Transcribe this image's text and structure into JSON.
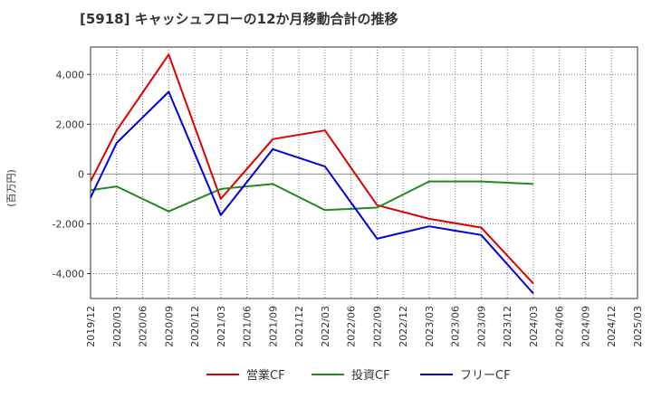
{
  "title": "[5918]  キャッシュフローの12か月移動合計の推移",
  "chart_data": {
    "type": "line",
    "title": "[5918]  キャッシュフローの12か月移動合計の推移",
    "xlabel": "",
    "ylabel": "(百万円)",
    "categories": [
      "2019/12",
      "2020/03",
      "2020/06",
      "2020/09",
      "2020/12",
      "2021/03",
      "2021/06",
      "2021/09",
      "2021/12",
      "2022/03",
      "2022/06",
      "2022/09",
      "2022/12",
      "2023/03",
      "2023/06",
      "2023/09",
      "2023/12",
      "2024/03",
      "2024/06",
      "2024/09",
      "2024/12",
      "2025/03"
    ],
    "yticks": [
      4000,
      2000,
      0,
      -2000,
      -4000
    ],
    "ytick_labels": [
      "4,000",
      "2,000",
      "0",
      "-2,000",
      "-4,000"
    ],
    "ylim": [
      -5000,
      5100
    ],
    "grid": true,
    "legend_position": "bottom",
    "series": [
      {
        "name": "営業CF",
        "color": "#dd0000",
        "values": [
          -300,
          1750,
          null,
          4800,
          null,
          -1000,
          null,
          1400,
          null,
          1750,
          null,
          -1250,
          null,
          -1800,
          null,
          -2150,
          null,
          -4400,
          null,
          null,
          null,
          null
        ]
      },
      {
        "name": "投資CF",
        "color": "#228822",
        "values": [
          -650,
          -500,
          null,
          -1500,
          null,
          -600,
          null,
          -400,
          null,
          -1450,
          null,
          -1350,
          null,
          -300,
          null,
          -300,
          null,
          -400,
          null,
          null,
          null,
          null
        ]
      },
      {
        "name": "フリーCF",
        "color": "#0000dd",
        "values": [
          -950,
          1250,
          null,
          3300,
          null,
          -1650,
          null,
          1000,
          null,
          300,
          null,
          -2600,
          null,
          -2100,
          null,
          -2450,
          null,
          -4800,
          null,
          null,
          null,
          null
        ]
      }
    ]
  }
}
